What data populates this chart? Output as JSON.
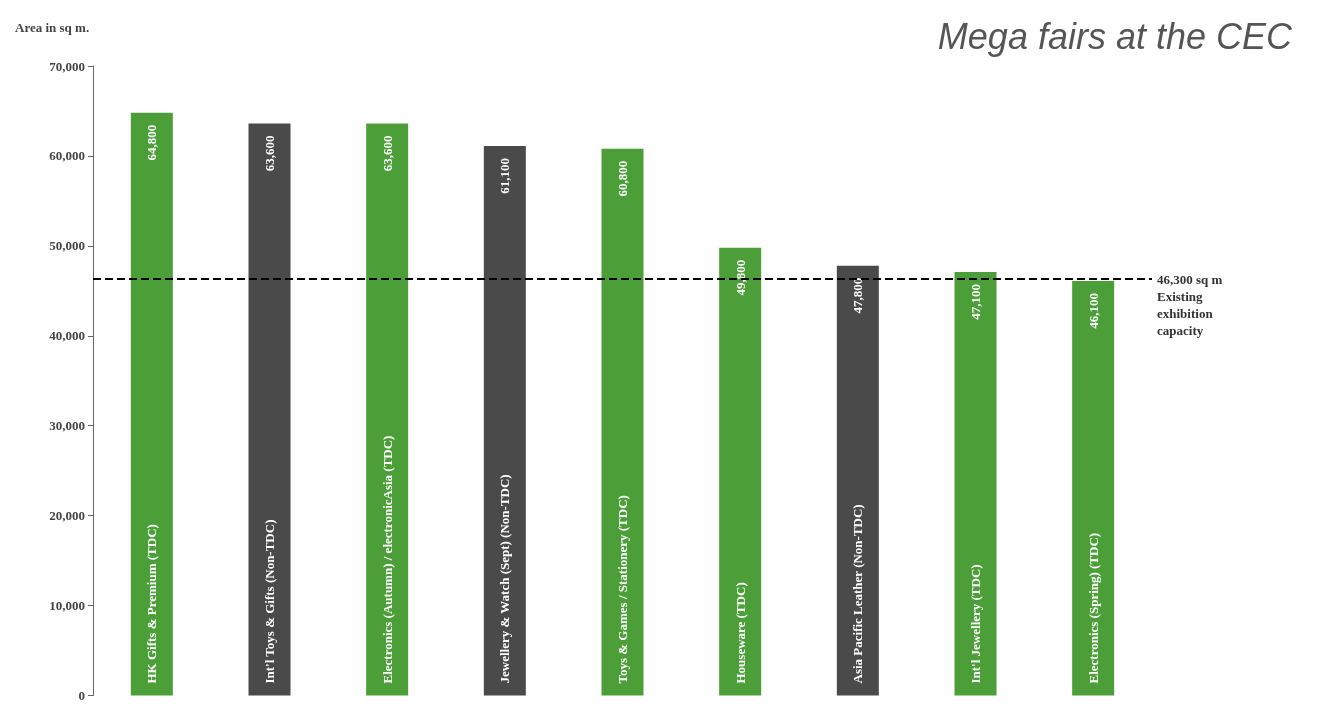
{
  "chart_data": {
    "type": "bar",
    "title": "Mega fairs at the CEC",
    "ylabel": "Area in sq m.",
    "categories": [
      "HK Gifts & Premium (TDC)",
      "Int'l Toys & Gifts (Non-TDC)",
      "Electronics (Autumn) / electronicAsia (TDC)",
      "Jewellery & Watch (Sept) (Non-TDC)",
      "Toys & Games / Stationery (TDC)",
      "Houseware (TDC)",
      "Asia Pacific Leather (Non-TDC)",
      "Int'l Jewellery (TDC)",
      "Electronics (Spring) (TDC)"
    ],
    "values": [
      64800,
      63600,
      63600,
      61100,
      60800,
      49800,
      47800,
      47100,
      46100
    ],
    "colors": [
      "#4c9f38",
      "#4a4a4a",
      "#4c9f38",
      "#4a4a4a",
      "#4c9f38",
      "#4c9f38",
      "#4a4a4a",
      "#4c9f38",
      "#4c9f38"
    ],
    "value_labels": [
      "64,800",
      "63,600",
      "63,600",
      "61,100",
      "60,800",
      "49,800",
      "47,800",
      "47,100",
      "46,100"
    ],
    "ylim": [
      0,
      70000
    ],
    "yticks": [
      0,
      {
        "value": 10000,
        "label": "10,000"
      },
      {
        "value": 20000,
        "label": "20,000"
      },
      {
        "value": 30000,
        "label": "30,000"
      },
      {
        "value": 40000,
        "label": "40,000"
      },
      {
        "value": 50000,
        "label": "50,000"
      },
      {
        "value": 60000,
        "label": "60,000"
      },
      {
        "value": 70000,
        "label": "70,000"
      }
    ],
    "grid": false,
    "ref_lines": [
      {
        "axis": "y",
        "value": 46300,
        "label": "46,300 sq m\nExisting\nexhibition\ncapacity",
        "color": "#000000",
        "line_style": "dashed"
      }
    ]
  }
}
